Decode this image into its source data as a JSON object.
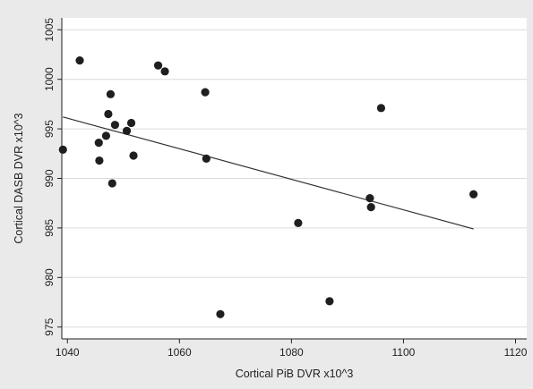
{
  "chart_data": {
    "type": "scatter",
    "title": "",
    "xlabel": "Cortical PiB DVR x10^3",
    "ylabel": "Cortical DASB DVR x10^3",
    "xlim": [
      1039,
      1122
    ],
    "ylim": [
      973.8,
      1006.2
    ],
    "xticks": [
      1040,
      1060,
      1080,
      1100,
      1120
    ],
    "yticks": [
      975,
      980,
      985,
      990,
      995,
      1000,
      1005
    ],
    "grid": "horizontal",
    "legend": "none",
    "colors": {
      "background": "#eaeaea",
      "plot_area": "#ffffff",
      "points": "#1f1f1f",
      "fit_line": "#333333",
      "gridlines": "#dcdcdc"
    },
    "points": [
      {
        "x": 1039.2,
        "y": 992.9
      },
      {
        "x": 1042.2,
        "y": 1001.9
      },
      {
        "x": 1045.6,
        "y": 993.6
      },
      {
        "x": 1045.7,
        "y": 991.8
      },
      {
        "x": 1046.9,
        "y": 994.3
      },
      {
        "x": 1047.3,
        "y": 996.5
      },
      {
        "x": 1047.7,
        "y": 998.5
      },
      {
        "x": 1048.0,
        "y": 989.5
      },
      {
        "x": 1048.5,
        "y": 995.4
      },
      {
        "x": 1050.6,
        "y": 994.8
      },
      {
        "x": 1051.4,
        "y": 995.6
      },
      {
        "x": 1051.8,
        "y": 992.3
      },
      {
        "x": 1056.2,
        "y": 1001.4
      },
      {
        "x": 1057.4,
        "y": 1000.8
      },
      {
        "x": 1064.6,
        "y": 998.7
      },
      {
        "x": 1064.8,
        "y": 992.0
      },
      {
        "x": 1067.3,
        "y": 976.3
      },
      {
        "x": 1081.2,
        "y": 985.5
      },
      {
        "x": 1086.8,
        "y": 977.6
      },
      {
        "x": 1094.0,
        "y": 988.0
      },
      {
        "x": 1094.2,
        "y": 987.1
      },
      {
        "x": 1096.0,
        "y": 997.1
      },
      {
        "x": 1112.5,
        "y": 988.4
      }
    ],
    "fit_line": {
      "x": [
        1039.2,
        1112.5
      ],
      "y": [
        996.2,
        984.9
      ]
    }
  }
}
